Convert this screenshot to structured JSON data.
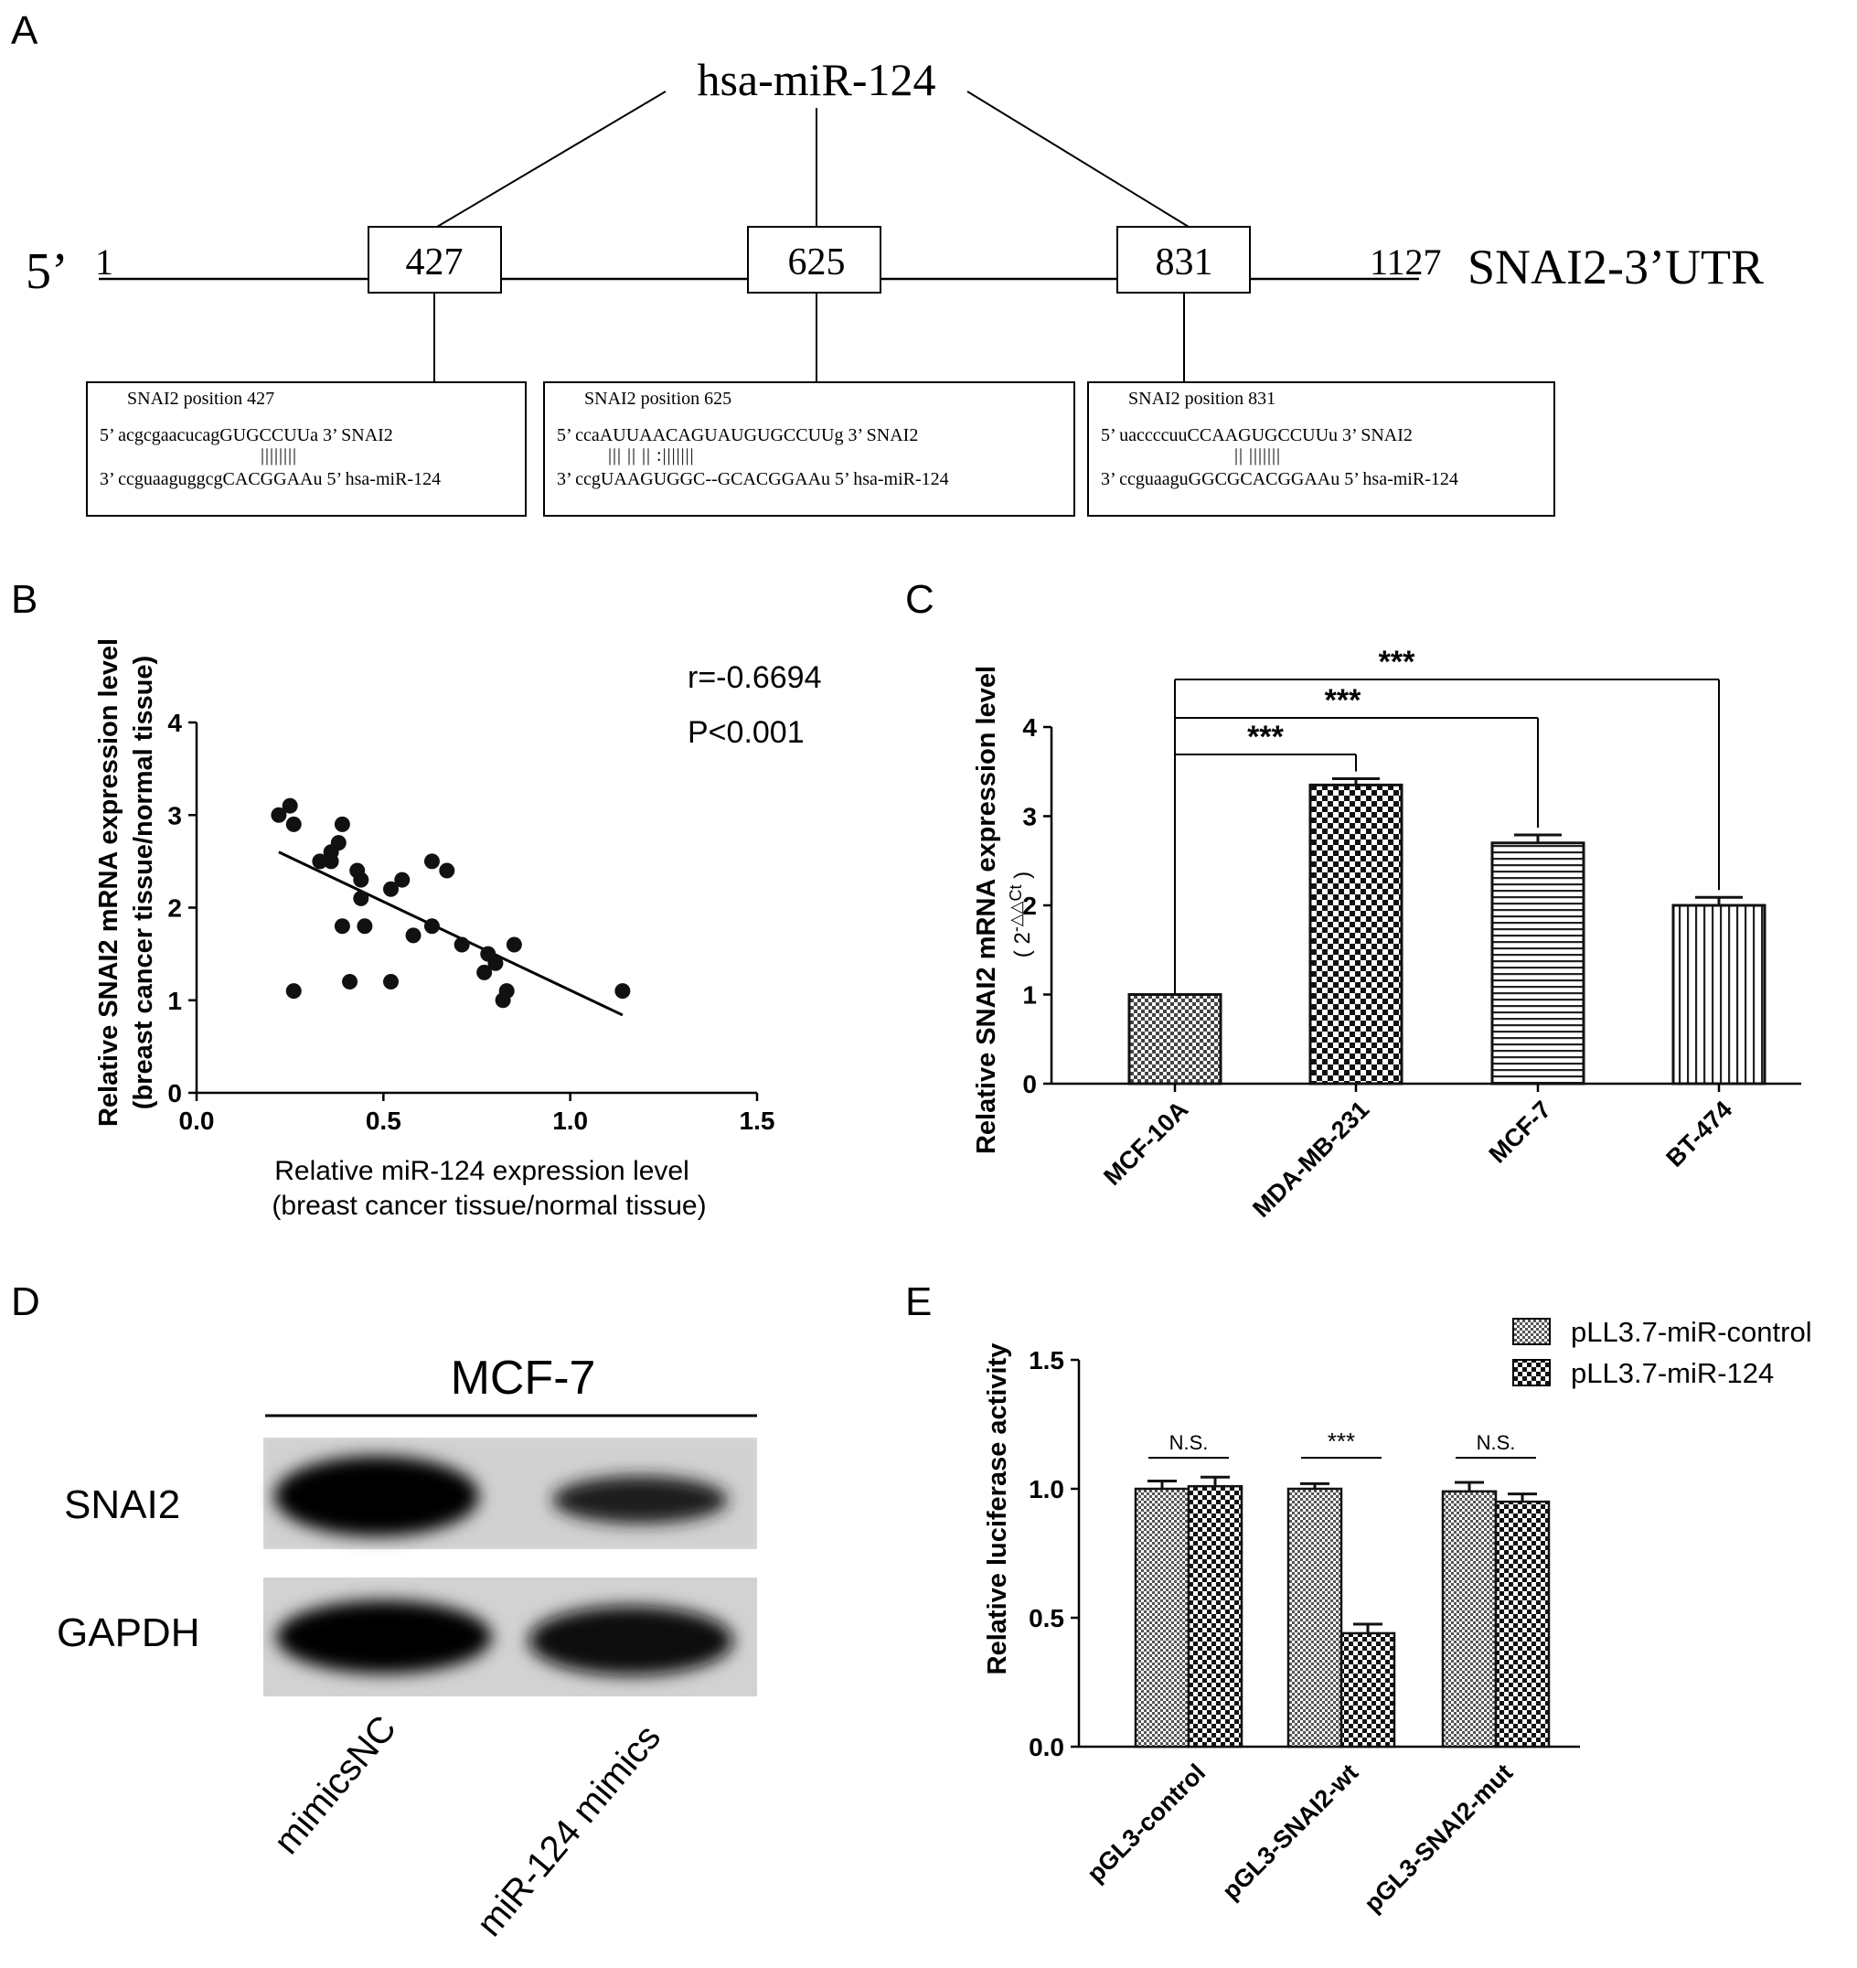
{
  "panel_letters": [
    "A",
    "B",
    "C",
    "D",
    "E"
  ],
  "panel_a": {
    "mirna": "hsa-miR-124",
    "utr_label": "SNAI2-3’UTR",
    "five_prime": "5’",
    "start": "1",
    "end": "1127",
    "sites": [
      {
        "position": "427",
        "title": "SNAI2 position 427",
        "top_seq": "5’ acgcgaacucagGUGCCUUa  3’    SNAI2",
        "pairing": "||||||||",
        "bottom_seq": "3’ ccguaaguggcgCACGGAAu  5’    hsa-miR-124"
      },
      {
        "position": "625",
        "title": "SNAI2 position 625",
        "top_seq": "5’ ccaAUUAACAGUAUGUGCCUUg  3’    SNAI2",
        "pairing": "||| ||  ||      :|||||||",
        "bottom_seq": "3’ ccgUAAGUGGC--GCACGGAAu  5’    hsa-miR-124"
      },
      {
        "position": "831",
        "title": "SNAI2 position 831",
        "top_seq": "5’  uaccccuuCCAAGUGCCUUu  3’   SNAI2",
        "pairing": "||    |||||||",
        "bottom_seq": "3’  ccguaaguGGCGCACGGAAu  5’   hsa-miR-124"
      }
    ]
  },
  "chart_data": [
    {
      "panel": "B",
      "type": "scatter",
      "xlabel": "Relative miR-124 expression level",
      "xlabel2": "(breast cancer tissue/normal tissue)",
      "ylabel": "Relative SNAI2 mRNA expression level",
      "ylabel2": "(breast cancer tissue/normal tissue)",
      "xlim": [
        0,
        1.5
      ],
      "ylim": [
        0,
        4
      ],
      "xticks": [
        "0.0",
        "0.5",
        "1.0",
        "1.5"
      ],
      "yticks": [
        "0",
        "1",
        "2",
        "3",
        "4"
      ],
      "annotations": [
        "r=-0.6694",
        "P<0.001"
      ],
      "regression": {
        "x": [
          0.22,
          1.14
        ],
        "y": [
          2.6,
          0.84
        ]
      },
      "points": [
        [
          0.22,
          3.0
        ],
        [
          0.25,
          3.1
        ],
        [
          0.26,
          2.9
        ],
        [
          0.26,
          1.1
        ],
        [
          0.33,
          2.5
        ],
        [
          0.36,
          2.6
        ],
        [
          0.36,
          2.5
        ],
        [
          0.38,
          2.7
        ],
        [
          0.39,
          2.9
        ],
        [
          0.39,
          1.8
        ],
        [
          0.41,
          1.2
        ],
        [
          0.43,
          2.4
        ],
        [
          0.44,
          2.3
        ],
        [
          0.44,
          2.1
        ],
        [
          0.45,
          1.8
        ],
        [
          0.52,
          2.2
        ],
        [
          0.52,
          1.2
        ],
        [
          0.55,
          2.3
        ],
        [
          0.58,
          1.7
        ],
        [
          0.63,
          2.5
        ],
        [
          0.63,
          1.8
        ],
        [
          0.67,
          2.4
        ],
        [
          0.71,
          1.6
        ],
        [
          0.77,
          1.3
        ],
        [
          0.78,
          1.5
        ],
        [
          0.8,
          1.4
        ],
        [
          0.82,
          1.0
        ],
        [
          0.83,
          1.1
        ],
        [
          0.85,
          1.6
        ],
        [
          1.14,
          1.1
        ]
      ]
    },
    {
      "panel": "C",
      "type": "bar",
      "categories": [
        "MCF-10A",
        "MDA-MB-231",
        "MCF-7",
        "BT-474"
      ],
      "values": [
        1.0,
        3.35,
        2.7,
        2.0
      ],
      "errors": [
        0.0,
        0.07,
        0.09,
        0.09
      ],
      "ylabel": "Relative SNAI2 mRNA expression level",
      "ylabel2": "( 2",
      "ylabel2_sup": "-△△Ct",
      "ylabel2_end": " )",
      "ylim": [
        0,
        4
      ],
      "yticks": [
        "0",
        "1",
        "2",
        "3",
        "4"
      ],
      "patterns": [
        "check-small",
        "check-large",
        "horizontal",
        "vertical"
      ],
      "significance": [
        "***",
        "***",
        "***"
      ]
    },
    {
      "panel": "E",
      "type": "bar",
      "categories": [
        "pGL3-control",
        "pGL3-SNAI2-wt",
        "pGL3-SNAI2-mut"
      ],
      "series": [
        {
          "name": "pLL3.7-miR-control",
          "values": [
            1.0,
            1.0,
            0.99
          ],
          "errors": [
            0.03,
            0.02,
            0.035
          ]
        },
        {
          "name": "pLL3.7-miR-124",
          "values": [
            1.01,
            0.44,
            0.95
          ],
          "errors": [
            0.035,
            0.035,
            0.03
          ]
        }
      ],
      "ylabel": "Relative luciferase activity",
      "ylim": [
        0,
        1.5
      ],
      "yticks": [
        "0.0",
        "0.5",
        "1.0",
        "1.5"
      ],
      "significance": [
        "N.S.",
        "***",
        "N.S."
      ],
      "legend": "top-right"
    }
  ],
  "panel_d": {
    "cell_line": "MCF-7",
    "bands": [
      "SNAI2",
      "GAPDH"
    ],
    "lanes": [
      "mimicsNC",
      "miR-124 mimics"
    ]
  }
}
